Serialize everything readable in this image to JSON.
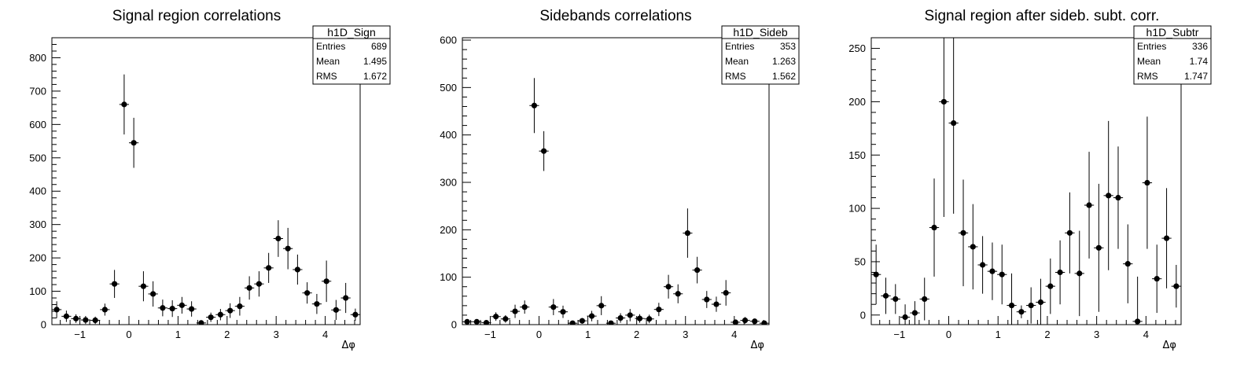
{
  "chart_data": [
    {
      "type": "scatter",
      "title": "Signal region correlations",
      "xlabel": "Δφ",
      "ylabel": "",
      "xlim": [
        -1.571,
        4.712
      ],
      "ylim": [
        0,
        860
      ],
      "xticks": [
        -1,
        0,
        1,
        2,
        3,
        4
      ],
      "yticks": [
        0,
        100,
        200,
        300,
        400,
        500,
        600,
        700,
        800
      ],
      "bin_width": 0.1963,
      "stats": {
        "name": "h1D_Sign",
        "rows": [
          [
            "Entries",
            "689"
          ],
          [
            "Mean",
            "1.495"
          ],
          [
            "RMS",
            "1.672"
          ]
        ]
      },
      "points": [
        {
          "x": -1.473,
          "y": 45,
          "err": 25
        },
        {
          "x": -1.276,
          "y": 25,
          "err": 17
        },
        {
          "x": -1.08,
          "y": 18,
          "err": 13
        },
        {
          "x": -0.884,
          "y": 14,
          "err": 12
        },
        {
          "x": -0.687,
          "y": 13,
          "err": 11
        },
        {
          "x": -0.491,
          "y": 45,
          "err": 18
        },
        {
          "x": -0.295,
          "y": 122,
          "err": 42
        },
        {
          "x": -0.098,
          "y": 660,
          "err": 90
        },
        {
          "x": 0.098,
          "y": 545,
          "err": 75
        },
        {
          "x": 0.295,
          "y": 115,
          "err": 45
        },
        {
          "x": 0.491,
          "y": 92,
          "err": 38
        },
        {
          "x": 0.687,
          "y": 50,
          "err": 25
        },
        {
          "x": 0.884,
          "y": 48,
          "err": 25
        },
        {
          "x": 1.08,
          "y": 58,
          "err": 25
        },
        {
          "x": 1.276,
          "y": 47,
          "err": 23
        },
        {
          "x": 1.473,
          "y": 5,
          "err": 5
        },
        {
          "x": 1.669,
          "y": 22,
          "err": 14
        },
        {
          "x": 1.865,
          "y": 30,
          "err": 17
        },
        {
          "x": 2.062,
          "y": 42,
          "err": 22
        },
        {
          "x": 2.258,
          "y": 55,
          "err": 28
        },
        {
          "x": 2.454,
          "y": 110,
          "err": 35
        },
        {
          "x": 2.651,
          "y": 122,
          "err": 38
        },
        {
          "x": 2.847,
          "y": 170,
          "err": 45
        },
        {
          "x": 3.043,
          "y": 258,
          "err": 55
        },
        {
          "x": 3.24,
          "y": 228,
          "err": 62
        },
        {
          "x": 3.436,
          "y": 165,
          "err": 45
        },
        {
          "x": 3.632,
          "y": 95,
          "err": 32
        },
        {
          "x": 3.829,
          "y": 62,
          "err": 30
        },
        {
          "x": 4.025,
          "y": 130,
          "err": 62
        },
        {
          "x": 4.221,
          "y": 44,
          "err": 30
        },
        {
          "x": 4.418,
          "y": 80,
          "err": 45
        },
        {
          "x": 4.614,
          "y": 30,
          "err": 18
        }
      ]
    },
    {
      "type": "scatter",
      "title": "Sidebands correlations",
      "xlabel": "Δφ",
      "ylabel": "",
      "xlim": [
        -1.571,
        4.712
      ],
      "ylim": [
        0,
        605
      ],
      "xticks": [
        -1,
        0,
        1,
        2,
        3,
        4
      ],
      "yticks": [
        0,
        100,
        200,
        300,
        400,
        500,
        600
      ],
      "bin_width": 0.1963,
      "stats": {
        "name": "h1D_Sideb",
        "rows": [
          [
            "Entries",
            "353"
          ],
          [
            "Mean",
            "1.263"
          ],
          [
            "RMS",
            "1.562"
          ]
        ]
      },
      "points": [
        {
          "x": -1.473,
          "y": 6,
          "err": 5
        },
        {
          "x": -1.276,
          "y": 6,
          "err": 5
        },
        {
          "x": -1.08,
          "y": 4,
          "err": 4
        },
        {
          "x": -0.884,
          "y": 17,
          "err": 9
        },
        {
          "x": -0.687,
          "y": 12,
          "err": 8
        },
        {
          "x": -0.491,
          "y": 28,
          "err": 14
        },
        {
          "x": -0.295,
          "y": 37,
          "err": 14
        },
        {
          "x": -0.098,
          "y": 462,
          "err": 58
        },
        {
          "x": 0.098,
          "y": 366,
          "err": 42
        },
        {
          "x": 0.295,
          "y": 37,
          "err": 17
        },
        {
          "x": 0.491,
          "y": 27,
          "err": 13
        },
        {
          "x": 0.687,
          "y": 3,
          "err": 3
        },
        {
          "x": 0.884,
          "y": 8,
          "err": 6
        },
        {
          "x": 1.08,
          "y": 18,
          "err": 11
        },
        {
          "x": 1.276,
          "y": 40,
          "err": 20
        },
        {
          "x": 1.473,
          "y": 3,
          "err": 3
        },
        {
          "x": 1.669,
          "y": 14,
          "err": 10
        },
        {
          "x": 1.865,
          "y": 20,
          "err": 13
        },
        {
          "x": 2.062,
          "y": 13,
          "err": 9
        },
        {
          "x": 2.258,
          "y": 12,
          "err": 9
        },
        {
          "x": 2.454,
          "y": 32,
          "err": 14
        },
        {
          "x": 2.651,
          "y": 80,
          "err": 25
        },
        {
          "x": 2.847,
          "y": 65,
          "err": 20
        },
        {
          "x": 3.043,
          "y": 193,
          "err": 52
        },
        {
          "x": 3.24,
          "y": 115,
          "err": 28
        },
        {
          "x": 3.436,
          "y": 53,
          "err": 18
        },
        {
          "x": 3.632,
          "y": 43,
          "err": 16
        },
        {
          "x": 3.829,
          "y": 67,
          "err": 27
        },
        {
          "x": 4.025,
          "y": 5,
          "err": 5
        },
        {
          "x": 4.221,
          "y": 9,
          "err": 7
        },
        {
          "x": 4.418,
          "y": 7,
          "err": 5
        },
        {
          "x": 4.614,
          "y": 3,
          "err": 3
        }
      ]
    },
    {
      "type": "scatter",
      "title": "Signal region after sideb. subt. corr.",
      "xlabel": "Δφ",
      "ylabel": "",
      "xlim": [
        -1.571,
        4.712
      ],
      "ylim": [
        -9,
        260
      ],
      "xticks": [
        -1,
        0,
        1,
        2,
        3,
        4
      ],
      "yticks": [
        0,
        50,
        100,
        150,
        200,
        250
      ],
      "bin_width": 0.1963,
      "stats": {
        "name": "h1D_Subtr",
        "rows": [
          [
            "Entries",
            "336"
          ],
          [
            "Mean",
            "1.74"
          ],
          [
            "RMS",
            "1.747"
          ]
        ]
      },
      "points": [
        {
          "x": -1.473,
          "y": 38,
          "err": 28
        },
        {
          "x": -1.276,
          "y": 18,
          "err": 17
        },
        {
          "x": -1.08,
          "y": 15,
          "err": 14
        },
        {
          "x": -0.884,
          "y": -2,
          "err": 12
        },
        {
          "x": -0.687,
          "y": 2,
          "err": 11
        },
        {
          "x": -0.491,
          "y": 15,
          "err": 20
        },
        {
          "x": -0.295,
          "y": 82,
          "err": 46
        },
        {
          "x": -0.098,
          "y": 200,
          "err": 108
        },
        {
          "x": 0.098,
          "y": 180,
          "err": 85
        },
        {
          "x": 0.295,
          "y": 77,
          "err": 50
        },
        {
          "x": 0.491,
          "y": 64,
          "err": 40
        },
        {
          "x": 0.687,
          "y": 47,
          "err": 27
        },
        {
          "x": 0.884,
          "y": 41,
          "err": 27
        },
        {
          "x": 1.08,
          "y": 38,
          "err": 28
        },
        {
          "x": 1.276,
          "y": 9,
          "err": 30
        },
        {
          "x": 1.473,
          "y": 3,
          "err": 6
        },
        {
          "x": 1.669,
          "y": 9,
          "err": 17
        },
        {
          "x": 1.865,
          "y": 12,
          "err": 22
        },
        {
          "x": 2.062,
          "y": 27,
          "err": 26
        },
        {
          "x": 2.258,
          "y": 40,
          "err": 30
        },
        {
          "x": 2.454,
          "y": 77,
          "err": 38
        },
        {
          "x": 2.651,
          "y": 39,
          "err": 40
        },
        {
          "x": 2.847,
          "y": 103,
          "err": 50
        },
        {
          "x": 3.043,
          "y": 63,
          "err": 60
        },
        {
          "x": 3.24,
          "y": 112,
          "err": 70
        },
        {
          "x": 3.436,
          "y": 110,
          "err": 48
        },
        {
          "x": 3.632,
          "y": 48,
          "err": 37
        },
        {
          "x": 3.829,
          "y": -6,
          "err": 42
        },
        {
          "x": 4.025,
          "y": 124,
          "err": 62
        },
        {
          "x": 4.221,
          "y": 34,
          "err": 32
        },
        {
          "x": 4.418,
          "y": 72,
          "err": 47
        },
        {
          "x": 4.614,
          "y": 27,
          "err": 20
        }
      ]
    }
  ]
}
